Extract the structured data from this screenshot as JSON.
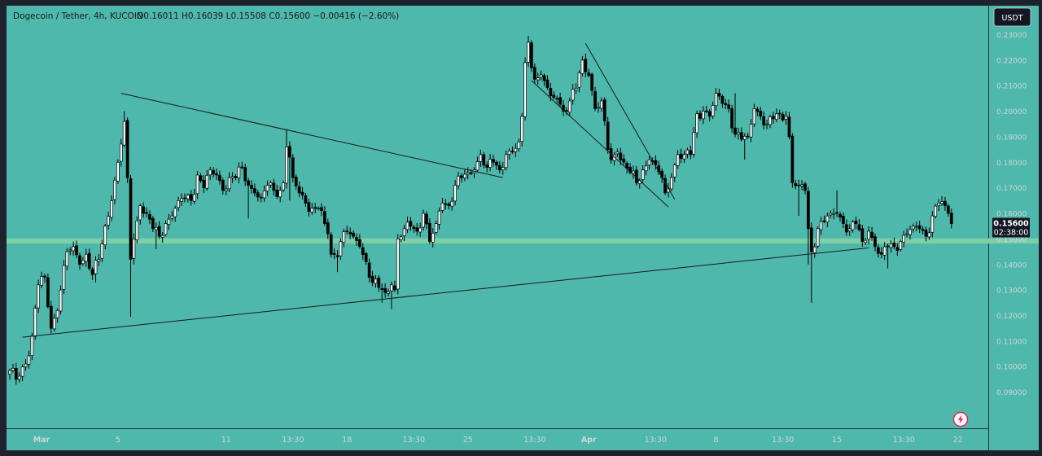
{
  "header": {
    "symbol": "Dogecoin / Tether, 4h, KUCOIN",
    "ohlc": "O0.16011 H0.16039 L0.15508 C0.15600 −0.00416 (−2.60%)"
  },
  "currency_label": "USDT",
  "last_price": {
    "value": "0.15600",
    "countdown": "02:38:00"
  },
  "colors": {
    "background": "#4db8ab",
    "frame": "#1e222d",
    "zone": "#7ecfa6",
    "candle_up": "#ffffff",
    "candle_down": "#000000",
    "axis_text": "#d1d4dc",
    "line": "#1a1a1a",
    "flash_icon": "#e91e63"
  },
  "icons": {
    "bottom_right": "flash-icon"
  },
  "chart_data": {
    "type": "candlestick",
    "title": "Dogecoin / Tether, 4h, KUCOIN",
    "ylim": [
      0.0835,
      0.2365
    ],
    "xlim": [
      0,
      300
    ],
    "y_ticks": [
      0.09,
      0.1,
      0.11,
      0.12,
      0.13,
      0.14,
      0.15,
      0.16,
      0.17,
      0.18,
      0.19,
      0.2,
      0.21,
      0.22,
      0.23
    ],
    "y_tick_labels": [
      "0.09000",
      "0.10000",
      "0.11000",
      "0.12000",
      "0.13000",
      "0.14000",
      "0.15000",
      "0.16000",
      "0.17000",
      "0.18000",
      "0.19000",
      "0.20000",
      "0.21000",
      "0.22000",
      "0.23000"
    ],
    "x_ticks": [
      {
        "label": "Mar",
        "x": 10,
        "bold": true
      },
      {
        "label": "5",
        "x": 34
      },
      {
        "label": "11",
        "x": 68
      },
      {
        "label": "13:30",
        "x": 89
      },
      {
        "label": "18",
        "x": 106
      },
      {
        "label": "13:30",
        "x": 127
      },
      {
        "label": "25",
        "x": 144
      },
      {
        "label": "13:30",
        "x": 165
      },
      {
        "label": "Apr",
        "x": 182,
        "bold": true
      },
      {
        "label": "13:30",
        "x": 203
      },
      {
        "label": "8",
        "x": 222
      },
      {
        "label": "13:30",
        "x": 243
      },
      {
        "label": "15",
        "x": 260
      },
      {
        "label": "13:30",
        "x": 281
      },
      {
        "label": "22",
        "x": 298
      }
    ],
    "support_zone": [
      0.1482,
      0.1502
    ],
    "last_price": 0.156,
    "trendlines": [
      {
        "x1": 4,
        "y1": 0.1115,
        "x2": 270,
        "y2": 0.1465
      },
      {
        "x1": 35,
        "y1": 0.207,
        "x2": 155,
        "y2": 0.174
      },
      {
        "x1": 164,
        "y1": 0.212,
        "x2": 207,
        "y2": 0.1625
      },
      {
        "x1": 181,
        "y1": 0.2265,
        "x2": 209,
        "y2": 0.1655
      }
    ],
    "anchors": [
      [
        0,
        0.0985
      ],
      [
        2,
        0.095
      ],
      [
        5,
        0.101
      ],
      [
        7,
        0.112
      ],
      [
        9,
        0.132
      ],
      [
        11,
        0.135
      ],
      [
        13,
        0.115
      ],
      [
        15,
        0.122
      ],
      [
        16,
        0.13
      ],
      [
        18,
        0.145
      ],
      [
        20,
        0.147
      ],
      [
        22,
        0.14
      ],
      [
        24,
        0.144
      ],
      [
        26,
        0.136
      ],
      [
        28,
        0.142
      ],
      [
        30,
        0.155
      ],
      [
        32,
        0.165
      ],
      [
        34,
        0.18
      ],
      [
        36,
        0.196
      ],
      [
        37,
        0.174
      ],
      [
        38,
        0.142
      ],
      [
        39,
        0.15
      ],
      [
        41,
        0.163
      ],
      [
        43,
        0.16
      ],
      [
        45,
        0.154
      ],
      [
        47,
        0.151
      ],
      [
        49,
        0.156
      ],
      [
        51,
        0.159
      ],
      [
        53,
        0.165
      ],
      [
        55,
        0.166
      ],
      [
        57,
        0.165
      ],
      [
        59,
        0.175
      ],
      [
        61,
        0.17
      ],
      [
        63,
        0.177
      ],
      [
        65,
        0.175
      ],
      [
        67,
        0.169
      ],
      [
        69,
        0.174
      ],
      [
        71,
        0.174
      ],
      [
        73,
        0.178
      ],
      [
        75,
        0.171
      ],
      [
        77,
        0.168
      ],
      [
        79,
        0.166
      ],
      [
        81,
        0.171
      ],
      [
        83,
        0.169
      ],
      [
        85,
        0.169
      ],
      [
        86,
        0.172
      ],
      [
        87,
        0.186
      ],
      [
        88,
        0.182
      ],
      [
        89,
        0.174
      ],
      [
        91,
        0.168
      ],
      [
        93,
        0.164
      ],
      [
        95,
        0.162
      ],
      [
        97,
        0.162
      ],
      [
        99,
        0.156
      ],
      [
        100,
        0.152
      ],
      [
        101,
        0.144
      ],
      [
        103,
        0.143
      ],
      [
        104,
        0.149
      ],
      [
        106,
        0.153
      ],
      [
        108,
        0.151
      ],
      [
        110,
        0.147
      ],
      [
        112,
        0.141
      ],
      [
        114,
        0.133
      ],
      [
        116,
        0.131
      ],
      [
        118,
        0.129
      ],
      [
        120,
        0.132
      ],
      [
        121,
        0.13
      ],
      [
        122,
        0.15
      ],
      [
        124,
        0.154
      ],
      [
        126,
        0.155
      ],
      [
        128,
        0.153
      ],
      [
        130,
        0.16
      ],
      [
        132,
        0.149
      ],
      [
        134,
        0.156
      ],
      [
        136,
        0.164
      ],
      [
        138,
        0.163
      ],
      [
        140,
        0.171
      ],
      [
        142,
        0.174
      ],
      [
        144,
        0.176
      ],
      [
        146,
        0.177
      ],
      [
        148,
        0.183
      ],
      [
        150,
        0.178
      ],
      [
        152,
        0.18
      ],
      [
        154,
        0.177
      ],
      [
        156,
        0.183
      ],
      [
        158,
        0.184
      ],
      [
        160,
        0.188
      ],
      [
        161,
        0.198
      ],
      [
        162,
        0.219
      ],
      [
        163,
        0.227
      ],
      [
        164,
        0.217
      ],
      [
        166,
        0.213
      ],
      [
        168,
        0.212
      ],
      [
        170,
        0.206
      ],
      [
        172,
        0.205
      ],
      [
        174,
        0.2
      ],
      [
        176,
        0.204
      ],
      [
        178,
        0.209
      ],
      [
        180,
        0.22
      ],
      [
        182,
        0.214
      ],
      [
        184,
        0.201
      ],
      [
        186,
        0.204
      ],
      [
        188,
        0.185
      ],
      [
        189,
        0.181
      ],
      [
        191,
        0.184
      ],
      [
        193,
        0.18
      ],
      [
        195,
        0.176
      ],
      [
        197,
        0.172
      ],
      [
        199,
        0.177
      ],
      [
        201,
        0.181
      ],
      [
        203,
        0.179
      ],
      [
        205,
        0.174
      ],
      [
        206,
        0.168
      ],
      [
        208,
        0.174
      ],
      [
        210,
        0.183
      ],
      [
        212,
        0.183
      ],
      [
        214,
        0.183
      ],
      [
        216,
        0.199
      ],
      [
        218,
        0.2
      ],
      [
        220,
        0.198
      ],
      [
        222,
        0.207
      ],
      [
        224,
        0.203
      ],
      [
        226,
        0.201
      ],
      [
        228,
        0.191
      ],
      [
        230,
        0.189
      ],
      [
        232,
        0.19
      ],
      [
        234,
        0.201
      ],
      [
        236,
        0.198
      ],
      [
        238,
        0.195
      ],
      [
        240,
        0.197
      ],
      [
        242,
        0.199
      ],
      [
        244,
        0.198
      ],
      [
        245,
        0.19
      ],
      [
        246,
        0.172
      ],
      [
        248,
        0.171
      ],
      [
        250,
        0.169
      ],
      [
        251,
        0.154
      ],
      [
        252,
        0.145
      ],
      [
        254,
        0.154
      ],
      [
        256,
        0.157
      ],
      [
        258,
        0.16
      ],
      [
        260,
        0.16
      ],
      [
        262,
        0.156
      ],
      [
        264,
        0.154
      ],
      [
        266,
        0.156
      ],
      [
        268,
        0.149
      ],
      [
        270,
        0.153
      ],
      [
        272,
        0.147
      ],
      [
        274,
        0.144
      ],
      [
        276,
        0.147
      ],
      [
        278,
        0.147
      ],
      [
        280,
        0.149
      ],
      [
        282,
        0.152
      ],
      [
        284,
        0.155
      ],
      [
        286,
        0.154
      ],
      [
        288,
        0.151
      ],
      [
        290,
        0.159
      ],
      [
        292,
        0.164
      ],
      [
        294,
        0.163
      ],
      [
        295,
        0.16
      ],
      [
        296,
        0.156
      ]
    ],
    "wicks": [
      {
        "x": 38,
        "low": 0.1195
      },
      {
        "x": 36,
        "high": 0.2
      },
      {
        "x": 39,
        "low": 0.14
      },
      {
        "x": 87,
        "high": 0.193
      },
      {
        "x": 120,
        "low": 0.1225
      },
      {
        "x": 163,
        "high": 0.2295
      },
      {
        "x": 252,
        "low": 0.125
      },
      {
        "x": 251,
        "low": 0.14
      },
      {
        "x": 260,
        "high": 0.169
      },
      {
        "x": 276,
        "low": 0.1385
      },
      {
        "x": 231,
        "low": 0.181
      },
      {
        "x": 88,
        "low": 0.165
      },
      {
        "x": 75,
        "low": 0.158
      },
      {
        "x": 27,
        "low": 0.133
      },
      {
        "x": 46,
        "low": 0.146
      },
      {
        "x": 248,
        "low": 0.159
      },
      {
        "x": 228,
        "high": 0.207
      },
      {
        "x": 103,
        "low": 0.137
      },
      {
        "x": 117,
        "low": 0.125
      }
    ]
  }
}
